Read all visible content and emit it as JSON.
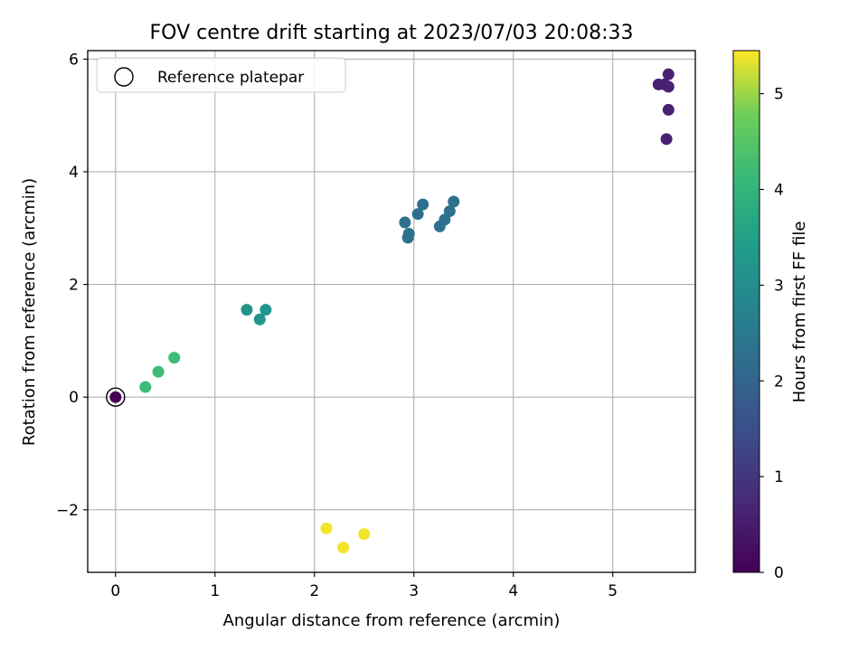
{
  "chart_data": {
    "type": "scatter",
    "title": "FOV centre drift starting at 2023/07/03 20:08:33",
    "xlabel": "Angular distance from reference (arcmin)",
    "ylabel": "Rotation from reference (arcmin)",
    "xlim": [
      -0.28,
      5.83
    ],
    "ylim": [
      -3.11,
      6.15
    ],
    "xticks": [
      0,
      1,
      2,
      3,
      4,
      5
    ],
    "yticks": [
      -2,
      0,
      2,
      4,
      6
    ],
    "xtick_labels": [
      "0",
      "1",
      "2",
      "3",
      "4",
      "5"
    ],
    "ytick_labels": [
      "−2",
      "0",
      "2",
      "4",
      "6"
    ],
    "grid": true,
    "legend": {
      "placement": "top-left",
      "label": "Reference platepar"
    },
    "colorbar": {
      "label": "Hours from first FF file",
      "colormap": "viridis",
      "range": [
        0,
        5.45
      ],
      "ticks": [
        0,
        1,
        2,
        3,
        4,
        5
      ],
      "tick_labels": [
        "0",
        "1",
        "2",
        "3",
        "4",
        "5"
      ]
    },
    "reference_point": {
      "x": 0,
      "y": 0
    },
    "points": [
      {
        "x": 0.0,
        "y": 0.0,
        "hours": 0.0
      },
      {
        "x": 5.46,
        "y": 5.55,
        "hours": 0.6
      },
      {
        "x": 5.52,
        "y": 5.55,
        "hours": 0.6
      },
      {
        "x": 5.56,
        "y": 5.73,
        "hours": 0.6
      },
      {
        "x": 5.56,
        "y": 5.51,
        "hours": 0.6
      },
      {
        "x": 5.56,
        "y": 5.1,
        "hours": 0.6
      },
      {
        "x": 5.54,
        "y": 4.58,
        "hours": 0.6
      },
      {
        "x": 2.91,
        "y": 3.1,
        "hours": 2.3
      },
      {
        "x": 2.95,
        "y": 2.9,
        "hours": 2.3
      },
      {
        "x": 2.94,
        "y": 2.83,
        "hours": 2.3
      },
      {
        "x": 3.04,
        "y": 3.25,
        "hours": 2.3
      },
      {
        "x": 3.09,
        "y": 3.42,
        "hours": 2.3
      },
      {
        "x": 3.26,
        "y": 3.03,
        "hours": 2.3
      },
      {
        "x": 3.31,
        "y": 3.15,
        "hours": 2.3
      },
      {
        "x": 3.36,
        "y": 3.3,
        "hours": 2.3
      },
      {
        "x": 3.4,
        "y": 3.47,
        "hours": 2.3
      },
      {
        "x": 1.32,
        "y": 1.55,
        "hours": 3.2
      },
      {
        "x": 1.45,
        "y": 1.38,
        "hours": 3.2
      },
      {
        "x": 1.51,
        "y": 1.55,
        "hours": 3.2
      },
      {
        "x": 0.3,
        "y": 0.18,
        "hours": 4.2
      },
      {
        "x": 0.43,
        "y": 0.45,
        "hours": 4.2
      },
      {
        "x": 0.59,
        "y": 0.7,
        "hours": 4.2
      },
      {
        "x": 2.12,
        "y": -2.33,
        "hours": 5.4
      },
      {
        "x": 2.29,
        "y": -2.67,
        "hours": 5.4
      },
      {
        "x": 2.5,
        "y": -2.43,
        "hours": 5.4
      }
    ]
  }
}
